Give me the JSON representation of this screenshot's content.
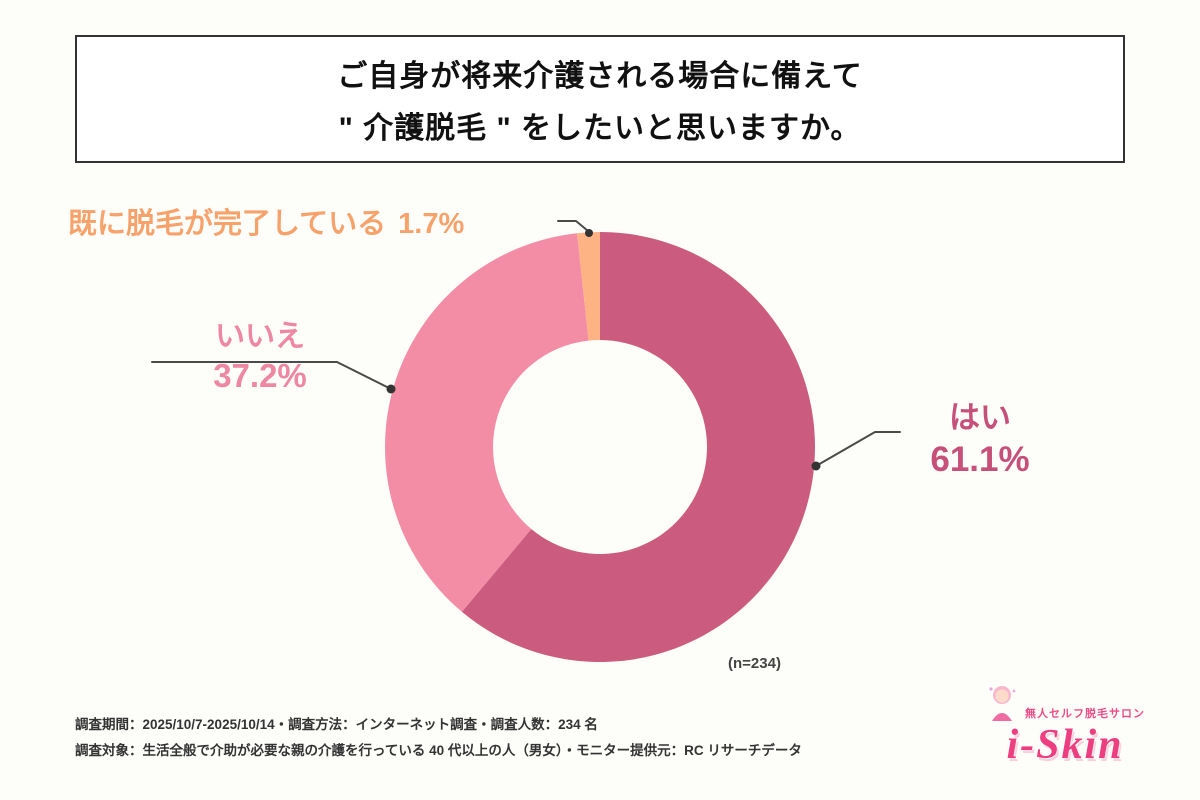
{
  "title": {
    "line1": "ご自身が将来介護される場合に備えて",
    "line2": "\" 介護脱毛 \" をしたいと思いますか。"
  },
  "chart_data": {
    "type": "pie",
    "donut": true,
    "title": "ご自身が将来介護される場合に備えて \" 介護脱毛 \" をしたいと思いますか。",
    "categories": [
      "はい",
      "いいえ",
      "既に脱毛が完了している"
    ],
    "values": [
      61.1,
      37.2,
      1.7
    ],
    "colors": [
      "#cb5c80",
      "#f38da5",
      "#fdb384"
    ],
    "label_colors": [
      "#c65079",
      "#ee87a1",
      "#f8a26b"
    ],
    "start_angle": 0,
    "direction": "clockwise",
    "legend_position": "outside-callouts",
    "n_label": "(n=234)"
  },
  "labels": {
    "yes": {
      "name": "はい",
      "pct": "61.1%"
    },
    "no": {
      "name": "いいえ",
      "pct": "37.2%"
    },
    "done": {
      "name": "既に脱毛が完了している",
      "pct": "1.7%"
    }
  },
  "footer": {
    "line1": "調査期間：2025/10/7-2025/10/14・調査方法：インターネット調査・調査人数：234 名",
    "line2": "調査対象：生活全般で介助が必要な親の介護を行っている 40 代以上の人（男女）・モニター提供元：RC リサーチデータ"
  },
  "logo": {
    "tagline": "無人セルフ脱毛サロン",
    "name": "i-Skin"
  }
}
